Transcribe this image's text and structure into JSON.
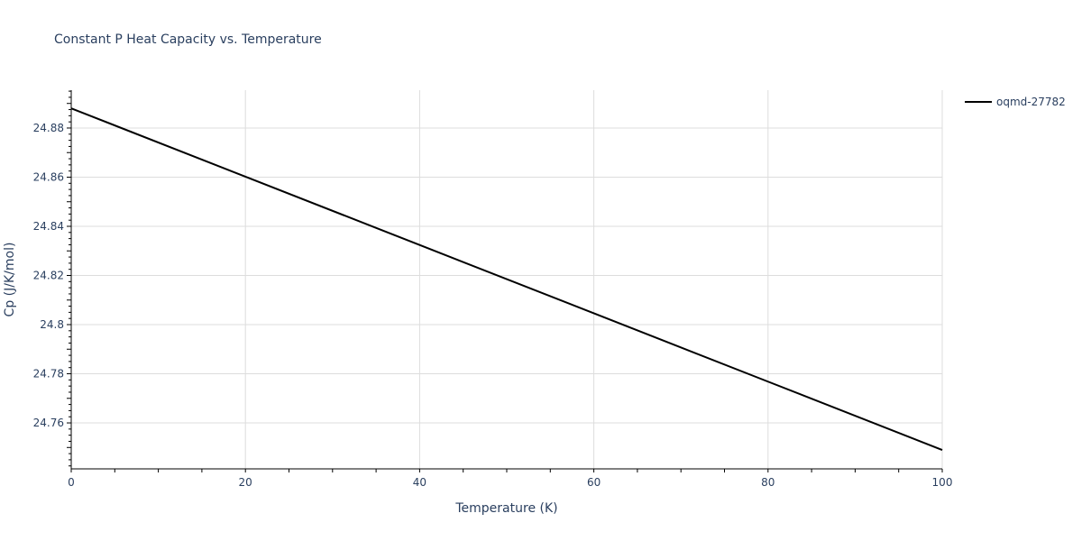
{
  "title": "Constant P Heat Capacity vs. Temperature",
  "legend": {
    "items": [
      {
        "label": "oqmd-27782",
        "color": "#000000"
      }
    ]
  },
  "axes": {
    "x": {
      "title": "Temperature (K)",
      "ticks": [
        "0",
        "20",
        "40",
        "60",
        "80",
        "100"
      ]
    },
    "y": {
      "title": "Cp (J/K/mol)",
      "ticks": [
        "24.76",
        "24.78",
        "24.8",
        "24.82",
        "24.84",
        "24.86",
        "24.88"
      ]
    }
  },
  "chart_data": {
    "type": "line",
    "title": "Constant P Heat Capacity vs. Temperature",
    "xlabel": "Temperature (K)",
    "ylabel": "Cp (J/K/mol)",
    "xlim": [
      0,
      100
    ],
    "ylim": [
      24.7413,
      24.8954
    ],
    "grid": true,
    "legend_position": "right-top",
    "x_ticks": [
      0,
      20,
      40,
      60,
      80,
      100
    ],
    "y_ticks": [
      24.76,
      24.78,
      24.8,
      24.82,
      24.84,
      24.86,
      24.88
    ],
    "series": [
      {
        "name": "oqmd-27782",
        "color": "#000000",
        "x": [
          0,
          20,
          40,
          60,
          80,
          100
        ],
        "y": [
          24.888,
          24.8602,
          24.8324,
          24.8046,
          24.7768,
          24.749
        ]
      }
    ]
  }
}
